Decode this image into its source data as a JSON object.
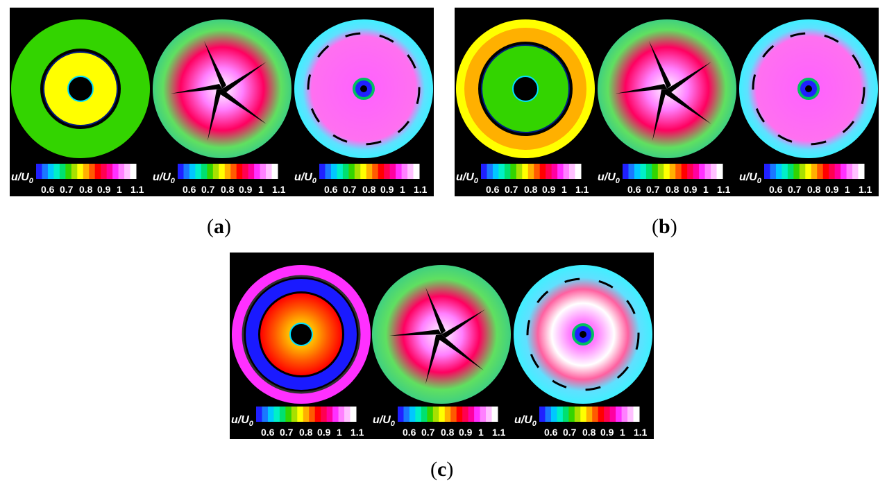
{
  "captions": {
    "a": "a",
    "b": "b",
    "c": "c"
  },
  "colorbar": {
    "label_main": "u/U",
    "label_sub": "0",
    "ticks": [
      "0.6",
      "0.7",
      "0.8",
      "0.9",
      "1",
      "1.1"
    ],
    "colors": [
      "#2020ff",
      "#1a78ff",
      "#00c8ff",
      "#00f0c8",
      "#00e070",
      "#33d400",
      "#a8e000",
      "#ffff00",
      "#ffb000",
      "#ff5a00",
      "#ff0000",
      "#ff0050",
      "#ff00a0",
      "#ff30ff",
      "#ff80ff",
      "#ffc0ff",
      "#ffffff"
    ]
  },
  "colors": {
    "background_panel": "#000000",
    "page": "#ffffff"
  }
}
